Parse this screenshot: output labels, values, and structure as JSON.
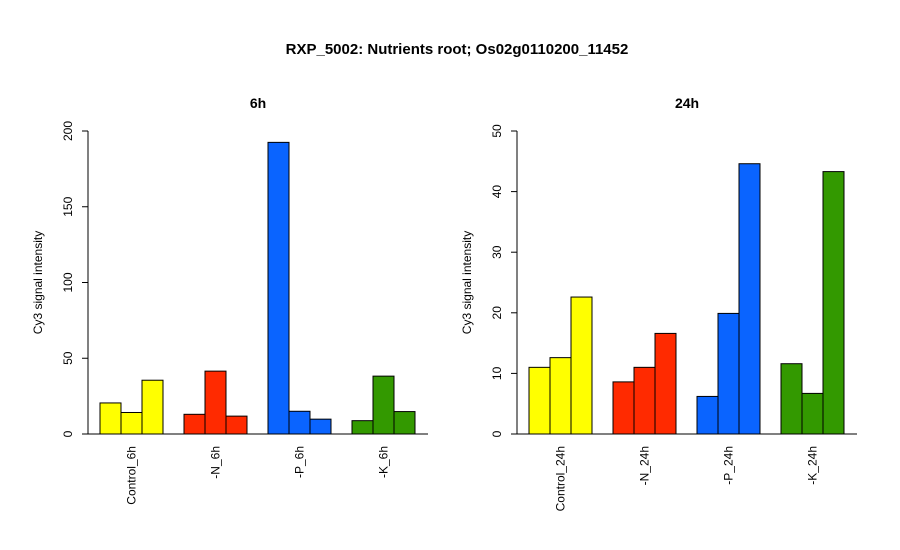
{
  "figure_title": "RXP_5002: Nutrients root; Os02g0110200_11452",
  "colors": {
    "control": "#ffff00",
    "minus_n": "#ff2a00",
    "minus_p": "#0a64ff",
    "minus_k": "#339900"
  },
  "chart_data": [
    {
      "type": "bar",
      "title": "6h",
      "ylabel": "Cy3 signal intensity",
      "xlabel": "",
      "ylim": [
        0,
        200
      ],
      "yticks": [
        0,
        50,
        100,
        150,
        200
      ],
      "grid": false,
      "categories": [
        "Control_6h",
        "-N_6h",
        "-P_6h",
        "-K_6h"
      ],
      "group_colors": [
        "#ffff00",
        "#ff2a00",
        "#0a64ff",
        "#339900"
      ],
      "groups": [
        {
          "category": "Control_6h",
          "values": [
            20.5,
            14.2,
            35.5
          ]
        },
        {
          "category": "-N_6h",
          "values": [
            13.0,
            41.5,
            11.8
          ]
        },
        {
          "category": "-P_6h",
          "values": [
            192.5,
            15.0,
            9.8
          ]
        },
        {
          "category": "-K_6h",
          "values": [
            8.8,
            38.2,
            14.8
          ]
        }
      ]
    },
    {
      "type": "bar",
      "title": "24h",
      "ylabel": "Cy3 signal intensity",
      "xlabel": "",
      "ylim": [
        0,
        50
      ],
      "yticks": [
        0,
        10,
        20,
        30,
        40,
        50
      ],
      "grid": false,
      "categories": [
        "Control_24h",
        "-N_24h",
        "-P_24h",
        "-K_24h"
      ],
      "group_colors": [
        "#ffff00",
        "#ff2a00",
        "#0a64ff",
        "#339900"
      ],
      "groups": [
        {
          "category": "Control_24h",
          "values": [
            11.0,
            12.6,
            22.6
          ]
        },
        {
          "category": "-N_24h",
          "values": [
            8.6,
            11.0,
            16.6
          ]
        },
        {
          "category": "-P_24h",
          "values": [
            6.2,
            19.9,
            44.6
          ]
        },
        {
          "category": "-K_24h",
          "values": [
            11.6,
            6.7,
            43.3
          ]
        }
      ]
    }
  ]
}
